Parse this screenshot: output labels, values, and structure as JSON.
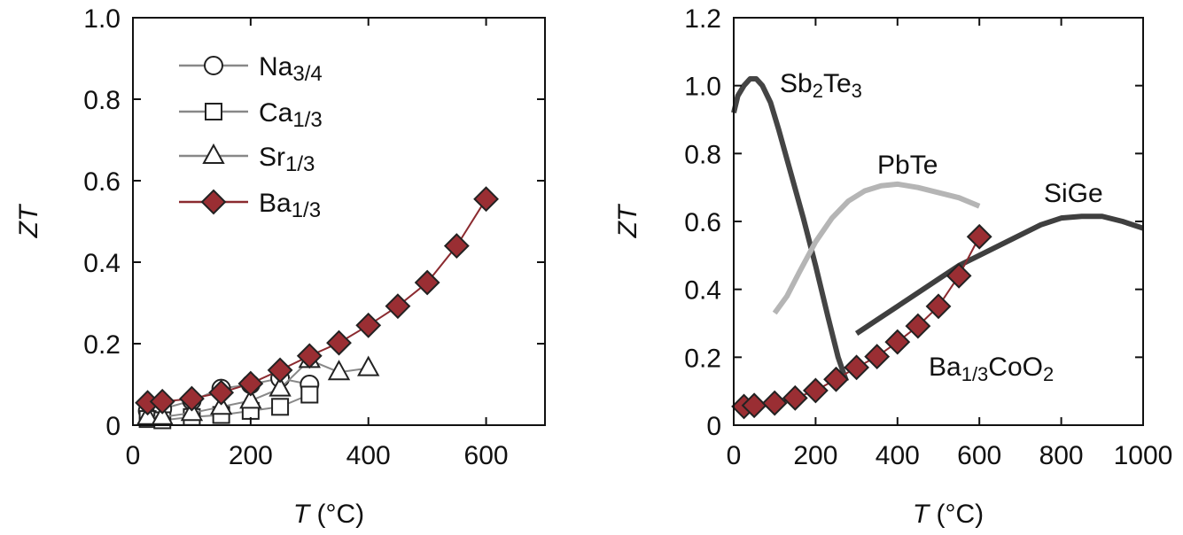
{
  "colors": {
    "ba": "#9a2e33",
    "ba_line": "#8b2a2f",
    "marker_stroke": "#222222",
    "open_line": "#888888",
    "sb2te3": "#444444",
    "pbte": "#b5b5b5",
    "sige": "#3f3f3f"
  },
  "chart_data": [
    {
      "type": "line",
      "panel": "left",
      "xlabel_var": "T",
      "xlabel_unit": " (°C)",
      "ylabel": "ZT",
      "xlim": [
        0,
        700
      ],
      "ylim": [
        0,
        1.0
      ],
      "xticks": [
        0,
        200,
        400,
        600
      ],
      "yticks": [
        0,
        0.2,
        0.4,
        0.6,
        0.8,
        1.0
      ],
      "xtick_labels": [
        "0",
        "200",
        "400",
        "600"
      ],
      "ytick_labels": [
        "0",
        "0.2",
        "0.4",
        "0.6",
        "0.8",
        "1.0"
      ],
      "legend_position": "top-left",
      "series": [
        {
          "name": "Na3/4",
          "label_base": "Na",
          "label_sub": "3/4",
          "marker": "circle",
          "filled": false,
          "x": [
            25,
            50,
            100,
            150,
            200,
            250,
            300
          ],
          "y": [
            0.035,
            0.04,
            0.06,
            0.09,
            0.1,
            0.115,
            0.1
          ]
        },
        {
          "name": "Ca1/3",
          "label_base": "Ca",
          "label_sub": "1/3",
          "marker": "square",
          "filled": false,
          "x": [
            25,
            50,
            100,
            150,
            200,
            250,
            300
          ],
          "y": [
            0.015,
            0.012,
            0.02,
            0.025,
            0.035,
            0.045,
            0.075
          ]
        },
        {
          "name": "Sr1/3",
          "label_base": "Sr",
          "label_sub": "1/3",
          "marker": "triangle",
          "filled": false,
          "x": [
            25,
            50,
            100,
            150,
            200,
            250,
            300,
            350,
            400
          ],
          "y": [
            0.02,
            0.02,
            0.03,
            0.045,
            0.06,
            0.09,
            0.16,
            0.13,
            0.14
          ]
        },
        {
          "name": "Ba1/3",
          "label_base": "Ba",
          "label_sub": "1/3",
          "marker": "diamond",
          "filled": true,
          "x": [
            25,
            50,
            100,
            150,
            200,
            250,
            300,
            350,
            400,
            450,
            500,
            550,
            600
          ],
          "y": [
            0.055,
            0.058,
            0.065,
            0.08,
            0.102,
            0.135,
            0.17,
            0.202,
            0.245,
            0.292,
            0.35,
            0.44,
            0.555
          ]
        }
      ]
    },
    {
      "type": "line",
      "panel": "right",
      "xlabel_var": "T",
      "xlabel_unit": " (°C)",
      "ylabel": "ZT",
      "xlim": [
        0,
        1000
      ],
      "ylim": [
        0,
        1.2
      ],
      "xticks": [
        0,
        200,
        400,
        600,
        800,
        1000
      ],
      "yticks": [
        0,
        0.2,
        0.4,
        0.6,
        0.8,
        1.0,
        1.2
      ],
      "xtick_labels": [
        "0",
        "200",
        "400",
        "600",
        "800",
        "1000"
      ],
      "ytick_labels": [
        "0",
        "0.2",
        "0.4",
        "0.6",
        "0.8",
        "1.0",
        "1.2"
      ],
      "series": [
        {
          "name": "Sb2Te3",
          "label_base": "Sb",
          "label_sub1": "2",
          "label_mid": "Te",
          "label_sub2": "3",
          "style": "thick-line",
          "x": [
            0,
            10,
            25,
            40,
            55,
            70,
            90,
            110,
            140,
            170,
            200,
            230,
            255,
            275
          ],
          "y": [
            0.92,
            0.97,
            1.0,
            1.02,
            1.02,
            1.0,
            0.95,
            0.87,
            0.74,
            0.61,
            0.47,
            0.32,
            0.2,
            0.13
          ]
        },
        {
          "name": "PbTe",
          "label": "PbTe",
          "style": "thick-line",
          "x": [
            100,
            130,
            160,
            200,
            240,
            280,
            320,
            360,
            400,
            450,
            500,
            550,
            600
          ],
          "y": [
            0.33,
            0.38,
            0.45,
            0.54,
            0.61,
            0.66,
            0.69,
            0.705,
            0.71,
            0.7,
            0.685,
            0.67,
            0.645
          ]
        },
        {
          "name": "SiGe",
          "label": "SiGe",
          "style": "thick-line",
          "x": [
            300,
            350,
            400,
            450,
            500,
            550,
            600,
            650,
            700,
            750,
            800,
            850,
            900,
            950,
            1000
          ],
          "y": [
            0.27,
            0.31,
            0.35,
            0.39,
            0.43,
            0.47,
            0.5,
            0.53,
            0.56,
            0.59,
            0.61,
            0.615,
            0.615,
            0.6,
            0.58
          ]
        },
        {
          "name": "Ba1/3CoO2",
          "label_base": "Ba",
          "label_sub1": "1/3",
          "label_mid": "CoO",
          "label_sub2": "2",
          "marker": "diamond",
          "filled": true,
          "x": [
            25,
            50,
            100,
            150,
            200,
            250,
            300,
            350,
            400,
            450,
            500,
            550,
            600
          ],
          "y": [
            0.055,
            0.058,
            0.065,
            0.08,
            0.102,
            0.135,
            0.17,
            0.202,
            0.245,
            0.292,
            0.35,
            0.44,
            0.555
          ]
        }
      ]
    }
  ]
}
